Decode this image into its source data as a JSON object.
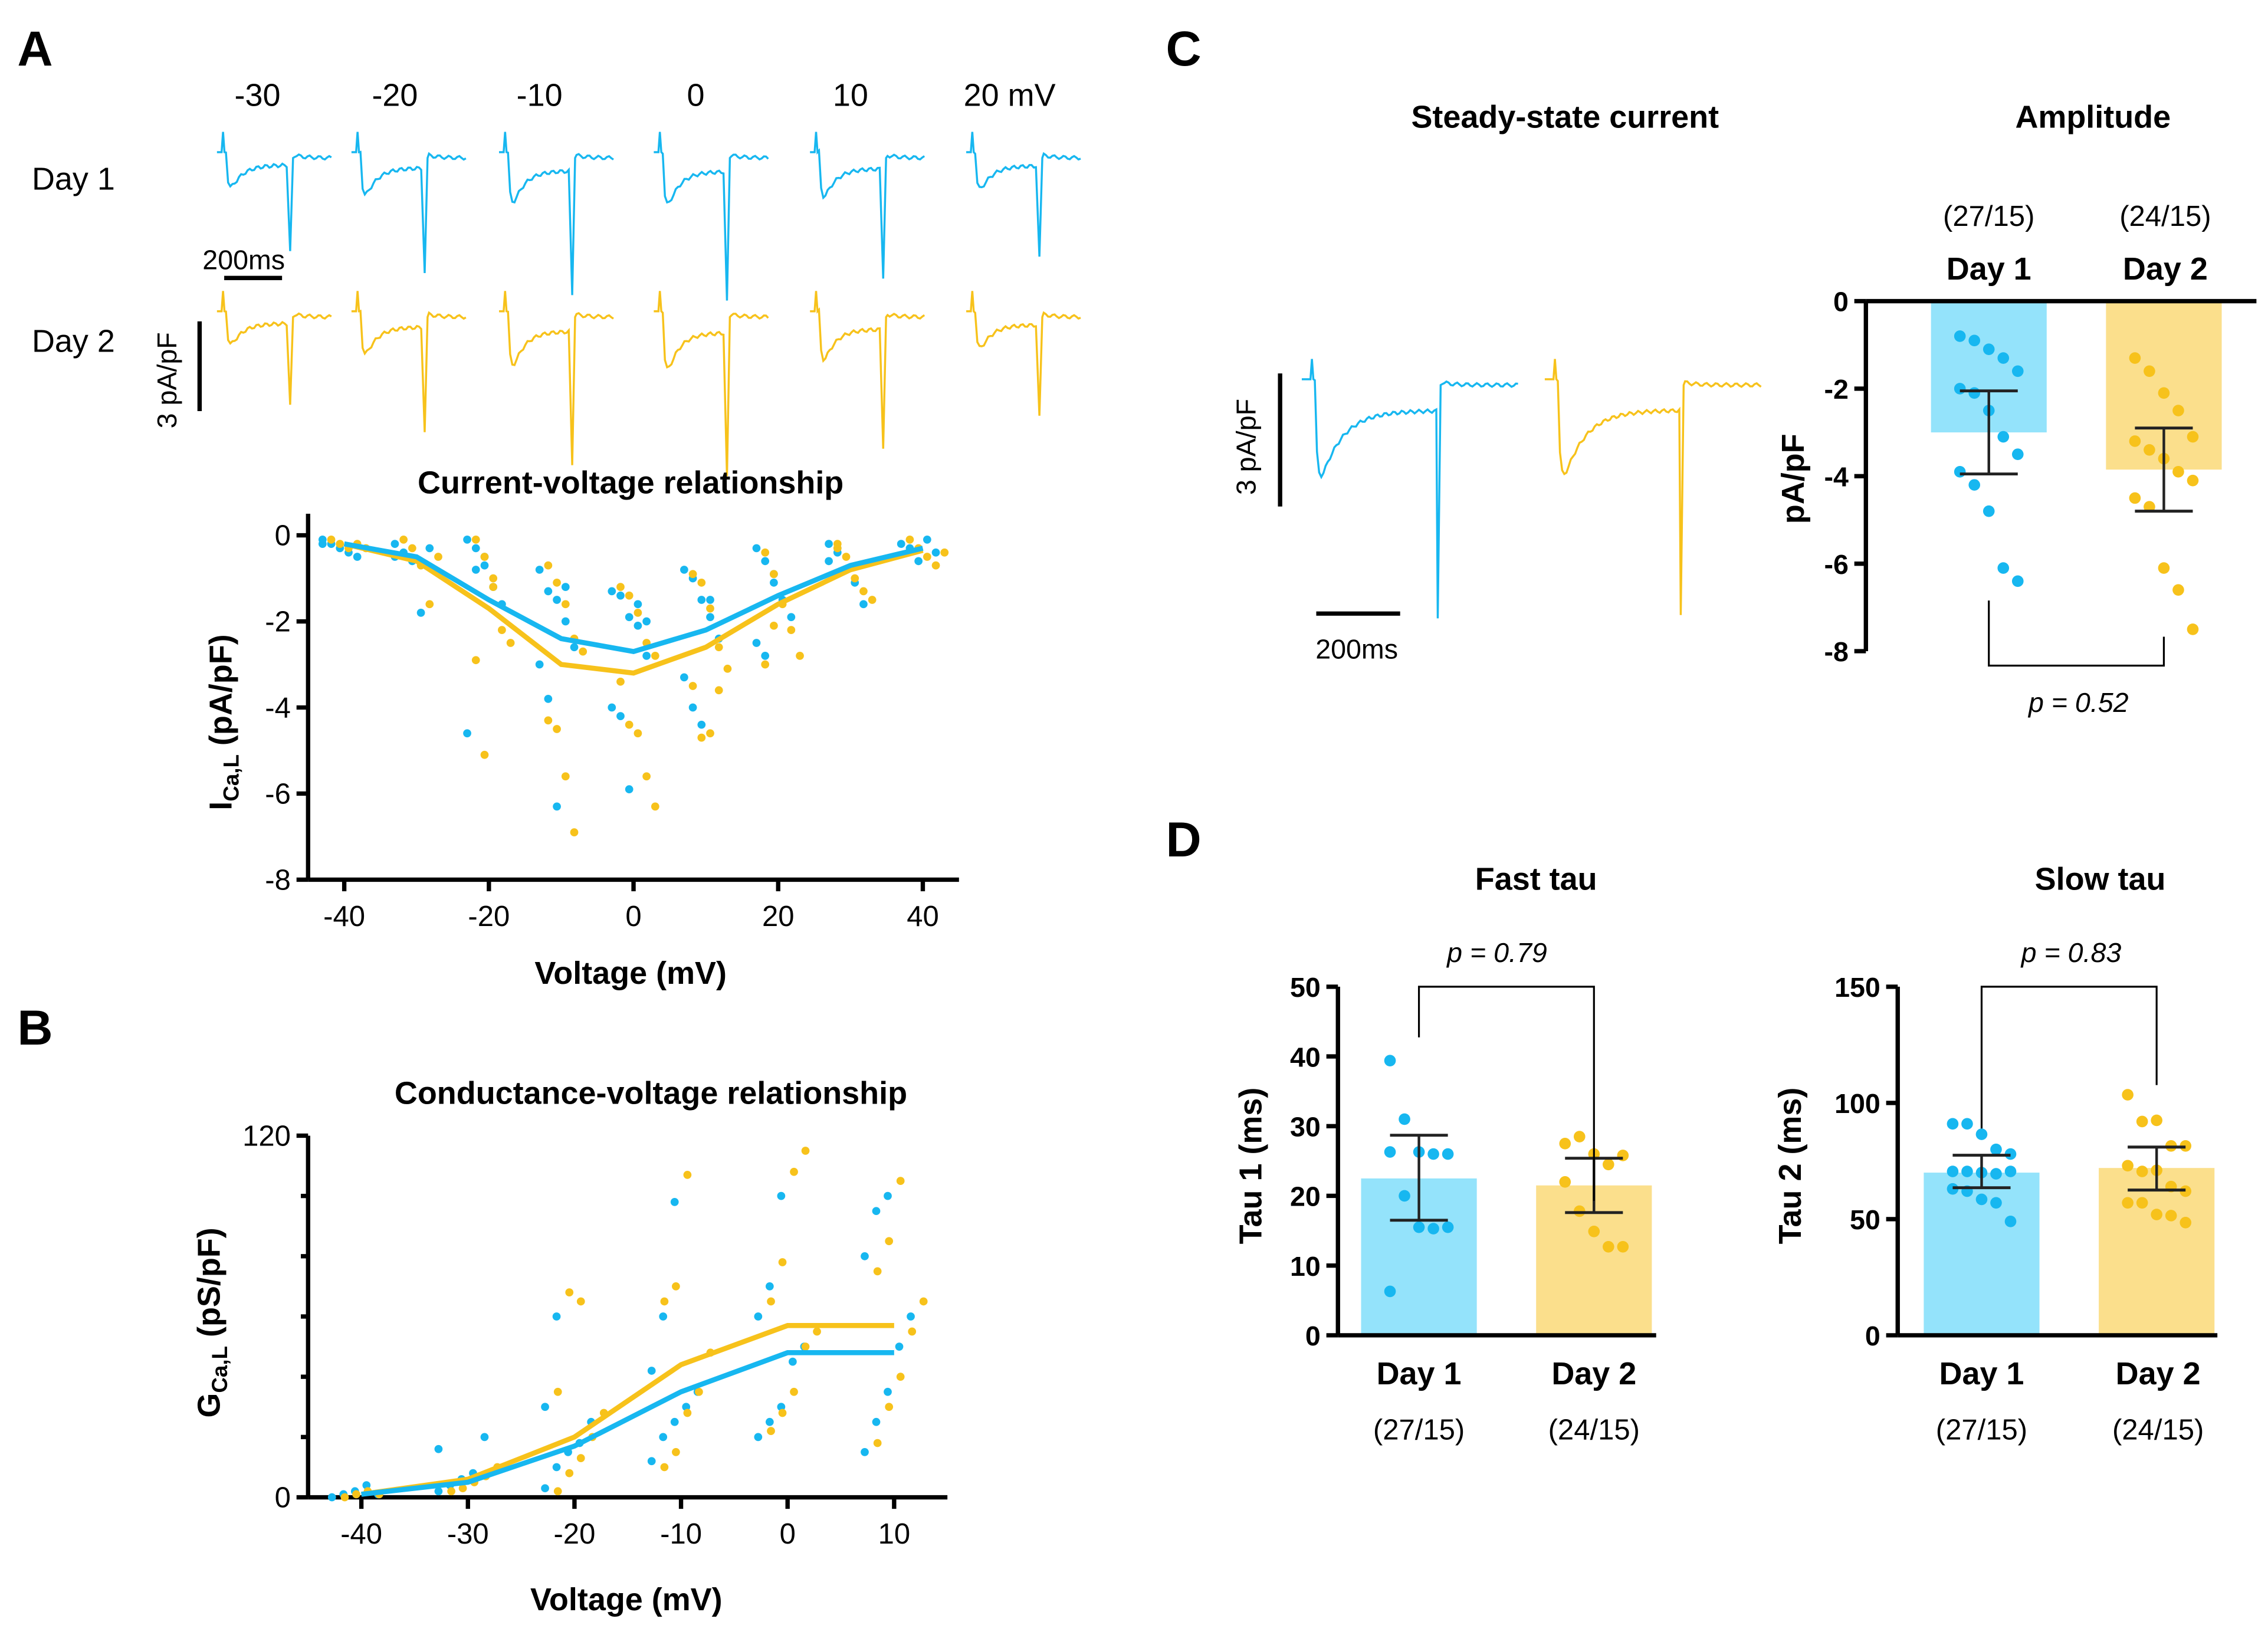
{
  "colors": {
    "day1": "#17b7f0",
    "day2": "#f7c21b",
    "day1_bar": "#94e3fb",
    "day2_bar": "#fbdf8c"
  },
  "panels": {
    "A": "A",
    "B": "B",
    "C": "C",
    "D": "D"
  },
  "chart_data": [
    {
      "id": "traces_A",
      "type": "line",
      "voltage_labels": [
        "-30",
        "-20",
        "-10",
        "0",
        "10",
        "20 mV"
      ],
      "row_labels": [
        "Day 1",
        "Day 2"
      ],
      "scale_time": "200ms",
      "scale_current": "3 pA/pF",
      "peaks_day1": [
        -1.8,
        -2.2,
        -2.6,
        -2.7,
        -2.3,
        -1.9
      ],
      "peaks_day2": [
        -1.7,
        -2.2,
        -2.8,
        -3.0,
        -2.5,
        -1.9
      ]
    },
    {
      "id": "iv",
      "type": "scatter",
      "title": "Current-voltage relationship",
      "xlabel": "Voltage (mV)",
      "ylabel_main": "I",
      "ylabel_sub": "Ca,L",
      "ylabel_unit": " (pA/pF)",
      "xlim": [
        -45,
        45
      ],
      "ylim": [
        -8,
        0.5
      ],
      "xticks": [
        -40,
        -20,
        0,
        20,
        40
      ],
      "yticks": [
        0,
        -2,
        -4,
        -6,
        -8
      ],
      "x": [
        -40,
        -30,
        -20,
        -10,
        0,
        10,
        20,
        30,
        40
      ],
      "mean_day1": [
        -0.2,
        -0.5,
        -1.5,
        -2.4,
        -2.7,
        -2.2,
        -1.4,
        -0.7,
        -0.3
      ],
      "mean_day2": [
        -0.2,
        -0.6,
        -1.7,
        -3.0,
        -3.2,
        -2.6,
        -1.6,
        -0.8,
        -0.35
      ],
      "points_day1": [
        [
          -0.1,
          -0.2,
          -0.3,
          -0.4,
          -0.5,
          -0.2
        ],
        [
          -0.2,
          -0.4,
          -0.6,
          -1.8,
          -0.3,
          -0.5
        ],
        [
          -0.1,
          -0.3,
          -0.7,
          -1.2,
          -1.6,
          -4.6,
          -0.8,
          -0.5
        ],
        [
          -0.8,
          -1.3,
          -1.5,
          -2.0,
          -2.6,
          -3.0,
          -3.8,
          -6.3,
          -1.2
        ],
        [
          -1.3,
          -1.4,
          -1.9,
          -2.1,
          -2.8,
          -4.0,
          -4.2,
          -5.9,
          -1.6,
          -2.0
        ],
        [
          -0.8,
          -1.0,
          -1.5,
          -1.9,
          -2.4,
          -3.3,
          -4.0,
          -4.4,
          -1.5
        ],
        [
          -0.3,
          -0.6,
          -1.1,
          -1.5,
          -1.9,
          -2.5,
          -2.8,
          -0.9
        ],
        [
          -0.2,
          -0.4,
          -0.8,
          -1.1,
          -1.6,
          -0.6,
          -0.3
        ],
        [
          -0.2,
          -0.3,
          -0.6,
          -0.1,
          -0.4
        ]
      ],
      "points_day2": [
        [
          -0.1,
          -0.2,
          -0.3,
          -0.2,
          -0.3
        ],
        [
          -0.1,
          -0.3,
          -0.7,
          -1.6,
          -0.5
        ],
        [
          -0.1,
          -0.5,
          -1.2,
          -2.2,
          -2.5,
          -2.9,
          -5.1,
          -1.0
        ],
        [
          -0.7,
          -1.1,
          -1.6,
          -2.4,
          -2.7,
          -4.3,
          -4.5,
          -5.6,
          -6.9
        ],
        [
          -1.2,
          -1.4,
          -1.8,
          -2.5,
          -2.8,
          -3.4,
          -4.4,
          -4.6,
          -5.6,
          -6.3
        ],
        [
          -0.9,
          -1.1,
          -1.7,
          -2.6,
          -3.1,
          -3.5,
          -4.7,
          -4.6,
          -3.6
        ],
        [
          -0.4,
          -0.9,
          -1.6,
          -2.2,
          -2.8,
          -3.0,
          -2.1
        ],
        [
          -0.3,
          -0.5,
          -1.0,
          -1.3,
          -1.5,
          -0.2
        ],
        [
          -0.1,
          -0.3,
          -0.5,
          -0.7,
          -0.4
        ]
      ]
    },
    {
      "id": "gv",
      "type": "scatter",
      "title": "Conductance-voltage relationship",
      "xlabel": "Voltage (mV)",
      "ylabel_main": "G",
      "ylabel_sub": "Ca,L",
      "ylabel_unit": " (pS/pF)",
      "xlim": [
        -45,
        15
      ],
      "ylim": [
        0,
        120
      ],
      "xticks": [
        -40,
        -30,
        -20,
        -10,
        0,
        10
      ],
      "yticks": [
        0,
        120
      ],
      "x": [
        -40,
        -30,
        -20,
        -10,
        0,
        10
      ],
      "mean_day1": [
        1,
        5,
        17,
        35,
        48,
        48
      ],
      "mean_day2": [
        1,
        6,
        20,
        44,
        57,
        57
      ],
      "points_day1": [
        [
          0,
          1,
          2,
          4,
          1
        ],
        [
          2,
          4,
          6,
          8,
          20,
          16
        ],
        [
          3,
          10,
          15,
          18,
          25,
          30,
          60
        ],
        [
          12,
          20,
          25,
          30,
          35,
          42,
          60,
          98
        ],
        [
          20,
          25,
          30,
          45,
          50,
          60,
          70,
          100
        ],
        [
          15,
          25,
          35,
          50,
          60,
          80,
          95,
          100
        ]
      ],
      "points_day2": [
        [
          0,
          1,
          2,
          1
        ],
        [
          2,
          3,
          5,
          7,
          10
        ],
        [
          2,
          8,
          13,
          20,
          28,
          35,
          68,
          65
        ],
        [
          10,
          15,
          28,
          35,
          48,
          65,
          70,
          107
        ],
        [
          22,
          28,
          35,
          50,
          55,
          65,
          78,
          108,
          115
        ],
        [
          18,
          30,
          40,
          55,
          65,
          75,
          85,
          105
        ]
      ]
    },
    {
      "id": "traces_C",
      "type": "line",
      "title": "Steady-state current",
      "scale_time": "200ms",
      "scale_current": "3 pA/pF",
      "peak_day1": -2.9,
      "peak_day2": -3.3
    },
    {
      "id": "amp",
      "type": "bar",
      "title": "Amplitude",
      "categories": [
        "Day 1",
        "Day 2"
      ],
      "n": [
        "(27/15)",
        "(24/15)"
      ],
      "ylabel": "pA/pF",
      "ylim": [
        -8,
        0
      ],
      "yticks": [
        0,
        -2,
        -4,
        -6,
        -8
      ],
      "means": [
        -3.0,
        -3.85
      ],
      "err_low": [
        -3.95,
        -4.8
      ],
      "err_high": [
        -2.05,
        -2.9
      ],
      "p": "p = 0.52",
      "points": [
        [
          -0.8,
          -0.9,
          -1.1,
          -1.3,
          -1.6,
          -2.0,
          -2.1,
          -2.5,
          -3.1,
          -3.5,
          -3.9,
          -4.2,
          -4.8,
          -6.1,
          -6.4
        ],
        [
          -1.3,
          -1.6,
          -2.1,
          -2.5,
          -3.1,
          -3.2,
          -3.4,
          -3.6,
          -3.9,
          -4.1,
          -4.5,
          -4.7,
          -6.1,
          -6.6,
          -7.5
        ]
      ]
    },
    {
      "id": "fast",
      "type": "bar",
      "title": "Fast tau",
      "categories": [
        "Day 1",
        "Day 2"
      ],
      "n": [
        "(27/15)",
        "(24/15)"
      ],
      "ylabel": "Tau 1 (ms)",
      "ylim": [
        0,
        50
      ],
      "yticks": [
        0,
        10,
        20,
        30,
        40,
        50
      ],
      "means": [
        22.5,
        21.5
      ],
      "err_low": [
        16.5,
        17.6
      ],
      "err_high": [
        28.7,
        25.4
      ],
      "p": "p = 0.79",
      "points": [
        [
          39.4,
          31,
          26.3,
          26,
          26,
          26.3,
          20,
          15.5,
          15.3,
          15.5,
          6.3
        ],
        [
          27.5,
          28.5,
          26,
          24.5,
          25.8,
          22,
          17.8,
          14.9,
          12.7,
          12.7
        ]
      ]
    },
    {
      "id": "slow",
      "type": "bar",
      "title": "Slow tau",
      "categories": [
        "Day 1",
        "Day 2"
      ],
      "n": [
        "(27/15)",
        "(24/15)"
      ],
      "ylabel": "Tau 2 (ms)",
      "ylim": [
        0,
        150
      ],
      "yticks": [
        0,
        50,
        100,
        150
      ],
      "means": [
        70,
        72
      ],
      "err_low": [
        63.5,
        62.5
      ],
      "err_high": [
        77.5,
        81
      ],
      "p": "p = 0.83",
      "points": [
        [
          91,
          91,
          86.5,
          80,
          78,
          70.5,
          70.5,
          70,
          69.5,
          70.5,
          63,
          62,
          58.5,
          57,
          49
        ],
        [
          103.5,
          92,
          92.5,
          81.5,
          81.5,
          73,
          70.5,
          71,
          64,
          62,
          57,
          57,
          52,
          51.5,
          48.5
        ]
      ]
    }
  ]
}
